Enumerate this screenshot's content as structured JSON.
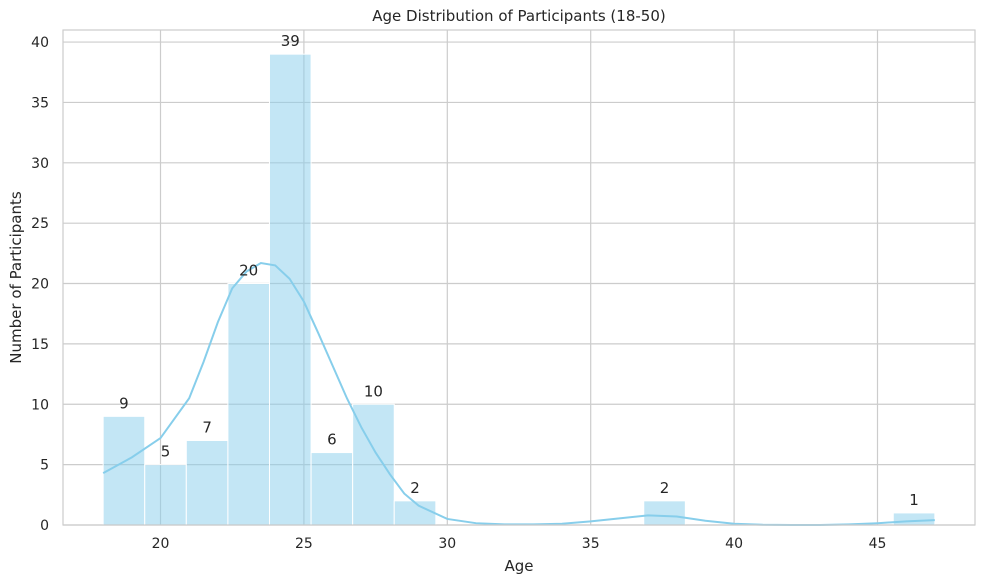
{
  "chart_data": {
    "type": "bar",
    "title": "Age Distribution of Participants (18-50)",
    "xlabel": "Age",
    "ylabel": "Number of Participants",
    "xlim": [
      16.6,
      48.4
    ],
    "ylim": [
      0,
      41
    ],
    "xticks": [
      20,
      25,
      30,
      35,
      40,
      45
    ],
    "yticks": [
      0,
      5,
      10,
      15,
      20,
      25,
      30,
      35,
      40
    ],
    "grid": true,
    "bar_color": "#87ceeb",
    "bins": [
      {
        "start": 18.0,
        "end": 19.45,
        "value": 9
      },
      {
        "start": 19.45,
        "end": 20.9,
        "value": 5
      },
      {
        "start": 20.9,
        "end": 22.35,
        "value": 7
      },
      {
        "start": 22.35,
        "end": 23.8,
        "value": 20
      },
      {
        "start": 23.8,
        "end": 25.25,
        "value": 39
      },
      {
        "start": 25.25,
        "end": 26.7,
        "value": 6
      },
      {
        "start": 26.7,
        "end": 28.15,
        "value": 10
      },
      {
        "start": 28.15,
        "end": 29.6,
        "value": 2
      },
      {
        "start": 36.85,
        "end": 38.3,
        "value": 2
      },
      {
        "start": 45.55,
        "end": 47.0,
        "value": 1
      }
    ],
    "kde": {
      "color": "#87ceeb",
      "x": [
        18,
        19,
        20,
        21,
        21.5,
        22,
        22.5,
        23,
        23.5,
        24,
        24.5,
        25,
        25.5,
        26,
        26.5,
        27,
        27.5,
        28,
        28.5,
        29,
        30,
        31,
        32,
        33,
        34,
        35,
        36,
        37,
        38,
        39,
        40,
        41,
        42,
        43,
        44,
        45,
        46,
        47
      ],
      "y": [
        4.3,
        5.6,
        7.2,
        10.5,
        13.5,
        16.8,
        19.6,
        21.0,
        21.7,
        21.5,
        20.4,
        18.5,
        15.9,
        13.2,
        10.5,
        8.1,
        6.0,
        4.2,
        2.6,
        1.6,
        0.5,
        0.15,
        0.05,
        0.05,
        0.1,
        0.3,
        0.55,
        0.8,
        0.7,
        0.35,
        0.1,
        0.02,
        0.0,
        0.0,
        0.05,
        0.15,
        0.3,
        0.4
      ]
    }
  }
}
